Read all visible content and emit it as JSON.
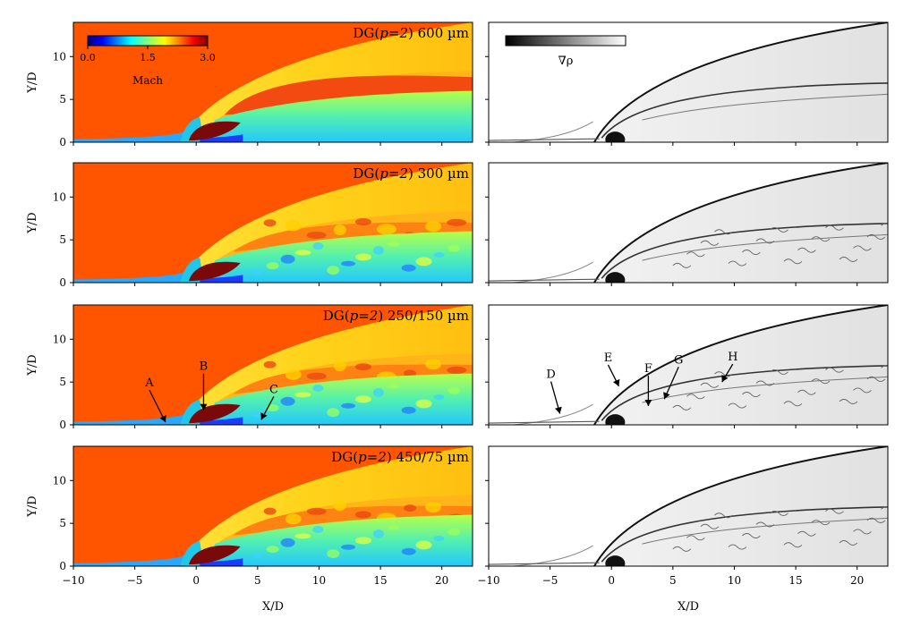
{
  "figure": {
    "xlabel": "X/D",
    "ylabel": "Y/D",
    "xlim": [
      -10,
      22.5
    ],
    "ylim": [
      0,
      14
    ],
    "xticks": [
      -10,
      -5,
      0,
      5,
      10,
      15,
      20
    ],
    "yticks": [
      0,
      5,
      10
    ],
    "rows": [
      {
        "label": "DG(p=2) 600 µm",
        "pre": "DG(",
        "italic": "p=2",
        "post": ") 600 µm"
      },
      {
        "label": "DG(p=2) 300 µm",
        "pre": "DG(",
        "italic": "p=2",
        "post": ") 300 µm"
      },
      {
        "label": "DG(p=2) 250/150 µm",
        "pre": "DG(",
        "italic": "p=2",
        "post": ") 250/150 µm"
      },
      {
        "label": "DG(p=2) 450/75 µm",
        "pre": "DG(",
        "italic": "p=2",
        "post": ") 450/75 µm"
      }
    ],
    "mach_colorbar": {
      "label": "Mach",
      "ticks": [
        "0.0",
        "1.5",
        "3.0"
      ],
      "range": [
        0,
        3.0
      ]
    },
    "grad_colorbar": {
      "label": "∇ρ"
    },
    "colors": {
      "jet_high": "#ff5500",
      "plume": "#7a0a0a",
      "post_shock": "#ffcf1a",
      "subsonic": "#2b44ff"
    }
  },
  "chart_data": [
    {
      "type": "heatmap",
      "field": "Mach number",
      "panel_column": "left",
      "xlabel": "X/D",
      "ylabel": "Y/D",
      "xlim": [
        -10,
        22.5
      ],
      "ylim": [
        0,
        14
      ],
      "colorbar": {
        "label": "Mach",
        "ticks": [
          0.0,
          1.5,
          3.0
        ]
      },
      "panels": [
        "DG(p=2) 600 µm",
        "DG(p=2) 300 µm",
        "DG(p=2) 250/150 µm",
        "DG(p=2) 450/75 µm"
      ],
      "annotations": [
        {
          "panel": 3,
          "text": "A",
          "x": -2.5,
          "y": 0.3
        },
        {
          "panel": 3,
          "text": "B",
          "x": 0.6,
          "y": 1.7
        },
        {
          "panel": 3,
          "text": "C",
          "x": 5.3,
          "y": 0.6
        }
      ]
    },
    {
      "type": "heatmap",
      "field": "Density gradient magnitude",
      "panel_column": "right",
      "xlabel": "X/D",
      "ylabel": "",
      "xlim": [
        -10,
        22.5
      ],
      "ylim": [
        0,
        14
      ],
      "colorbar": {
        "label": "∇ρ"
      },
      "panels": [
        "DG(p=2) 600 µm",
        "DG(p=2) 300 µm",
        "DG(p=2) 250/150 µm",
        "DG(p=2) 450/75 µm"
      ],
      "annotations": [
        {
          "panel": 3,
          "text": "D",
          "x": -4.2,
          "y": 1.3
        },
        {
          "panel": 3,
          "text": "E",
          "x": 0.6,
          "y": 4.5
        },
        {
          "panel": 3,
          "text": "F",
          "x": 3.0,
          "y": 2.2
        },
        {
          "panel": 3,
          "text": "G",
          "x": 4.3,
          "y": 3.0
        },
        {
          "panel": 3,
          "text": "H",
          "x": 9.0,
          "y": 5.0
        }
      ]
    }
  ]
}
